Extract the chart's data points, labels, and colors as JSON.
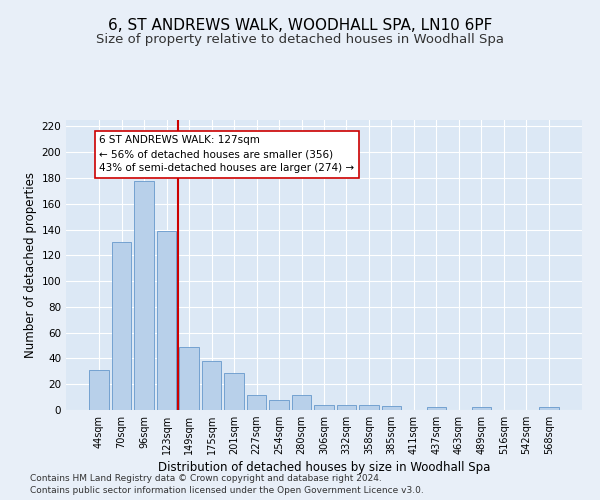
{
  "title": "6, ST ANDREWS WALK, WOODHALL SPA, LN10 6PF",
  "subtitle": "Size of property relative to detached houses in Woodhall Spa",
  "xlabel": "Distribution of detached houses by size in Woodhall Spa",
  "ylabel": "Number of detached properties",
  "bar_color": "#b8d0ea",
  "bar_edge_color": "#6699cc",
  "background_color": "#dce8f5",
  "grid_color": "#ffffff",
  "fig_background": "#e8eff8",
  "categories": [
    "44sqm",
    "70sqm",
    "96sqm",
    "123sqm",
    "149sqm",
    "175sqm",
    "201sqm",
    "227sqm",
    "254sqm",
    "280sqm",
    "306sqm",
    "332sqm",
    "358sqm",
    "385sqm",
    "411sqm",
    "437sqm",
    "463sqm",
    "489sqm",
    "516sqm",
    "542sqm",
    "568sqm"
  ],
  "values": [
    31,
    130,
    178,
    139,
    49,
    38,
    29,
    12,
    8,
    12,
    4,
    4,
    4,
    3,
    0,
    2,
    0,
    2,
    0,
    0,
    2
  ],
  "vline_color": "#cc0000",
  "vline_index": 3,
  "annotation_line1": "6 ST ANDREWS WALK: 127sqm",
  "annotation_line2": "← 56% of detached houses are smaller (356)",
  "annotation_line3": "43% of semi-detached houses are larger (274) →",
  "annotation_box_color": "#ffffff",
  "annotation_box_edge": "#cc0000",
  "footnote": "Contains HM Land Registry data © Crown copyright and database right 2024.\nContains public sector information licensed under the Open Government Licence v3.0.",
  "ylim": [
    0,
    225
  ],
  "yticks": [
    0,
    20,
    40,
    60,
    80,
    100,
    120,
    140,
    160,
    180,
    200,
    220
  ],
  "title_fontsize": 11,
  "subtitle_fontsize": 9.5,
  "tick_fontsize": 7,
  "ylabel_fontsize": 8.5,
  "xlabel_fontsize": 8.5,
  "annotation_fontsize": 7.5,
  "footnote_fontsize": 6.5
}
